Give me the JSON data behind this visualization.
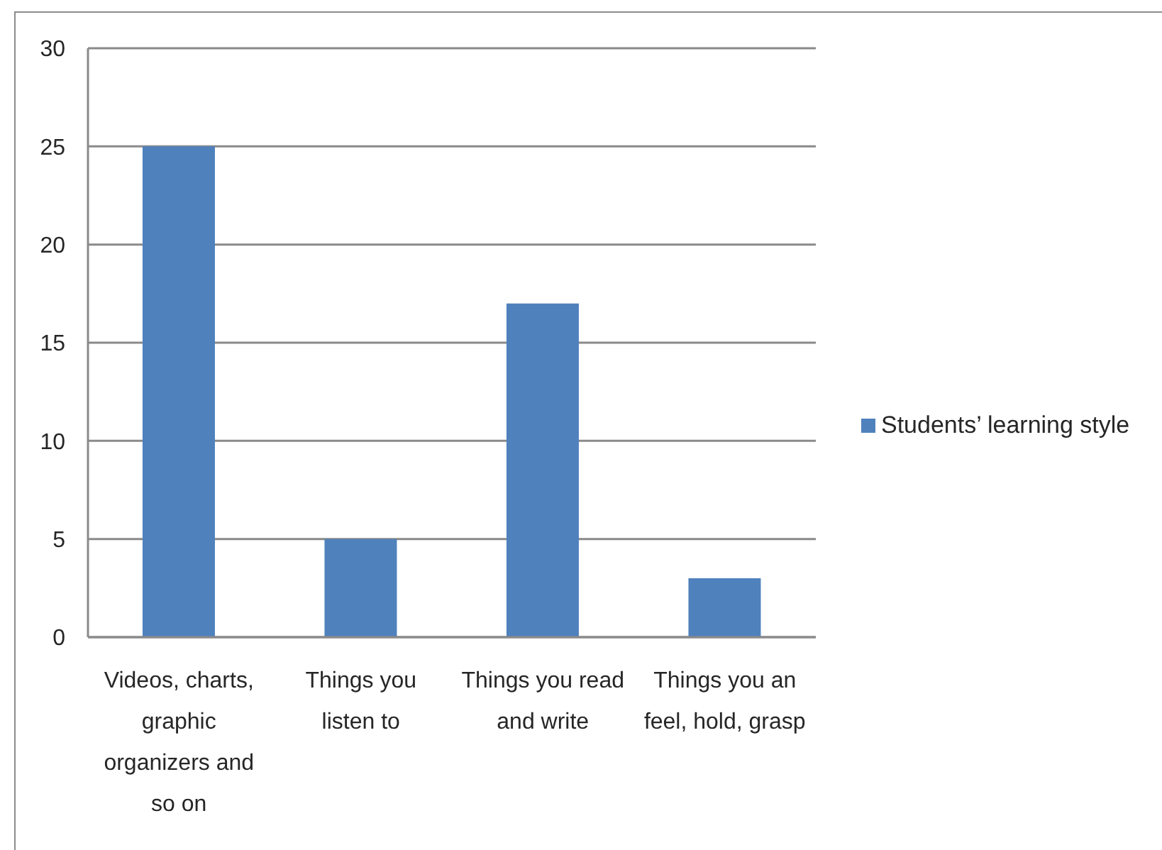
{
  "chart_data": {
    "type": "bar",
    "categories": [
      "Videos, charts, graphic organizers and so on",
      "Things you listen to",
      "Things you read and write",
      "Things you an feel, hold, grasp"
    ],
    "series": [
      {
        "name": "Students’ learning style",
        "color": "#4f81bd",
        "values": [
          25,
          5,
          17,
          3
        ]
      }
    ],
    "ylim": [
      0,
      30
    ],
    "yticks": [
      0,
      5,
      10,
      15,
      20,
      25,
      30
    ],
    "grid": "y",
    "legend": "right"
  }
}
